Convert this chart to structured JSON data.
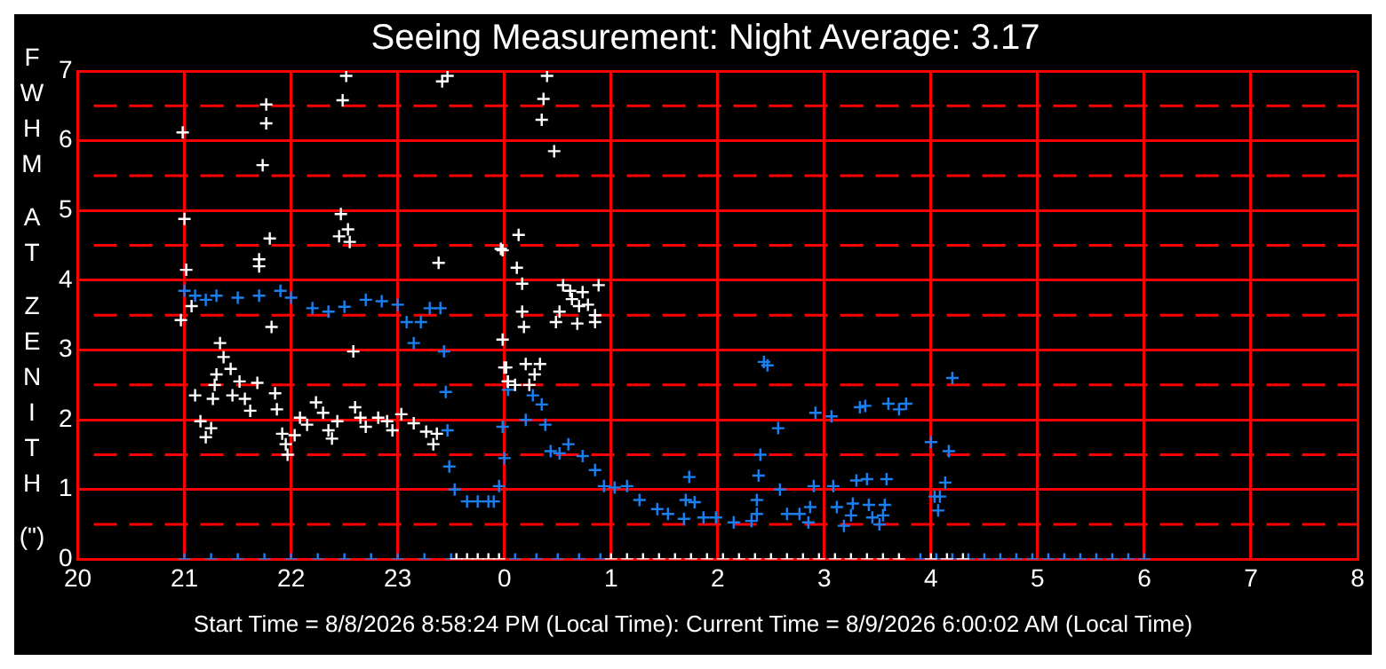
{
  "chart_data": {
    "type": "scatter",
    "title": "Seeing Measurement: Night Average: 3.17",
    "ylabel": "FWHM AT ZENITH (\")",
    "annotations": [
      "Start Time = 8/8/2026 8:58:24 PM (Local Time): Current Time = 8/9/2026 6:00:02 AM (Local Time)"
    ],
    "xlim": [
      "2026-08-08T20:00",
      "2026-08-09T08:00"
    ],
    "xticks": [
      {
        "value": "2026-08-08T20:00",
        "label": "20"
      },
      {
        "value": "2026-08-08T21:00",
        "label": "21"
      },
      {
        "value": "2026-08-08T22:00",
        "label": "22"
      },
      {
        "value": "2026-08-08T23:00",
        "label": "23"
      },
      {
        "value": "2026-08-09T00:00",
        "label": "0"
      },
      {
        "value": "2026-08-09T01:00",
        "label": "1"
      },
      {
        "value": "2026-08-09T02:00",
        "label": "2"
      },
      {
        "value": "2026-08-09T03:00",
        "label": "3"
      },
      {
        "value": "2026-08-09T04:00",
        "label": "4"
      },
      {
        "value": "2026-08-09T05:00",
        "label": "5"
      },
      {
        "value": "2026-08-09T06:00",
        "label": "6"
      },
      {
        "value": "2026-08-09T07:00",
        "label": "7"
      },
      {
        "value": "2026-08-09T08:00",
        "label": "8"
      }
    ],
    "ylim": [
      0,
      7
    ],
    "yticks": [
      0,
      {
        "value": 0.5,
        "label": null
      },
      1,
      {
        "value": 1.5,
        "label": null
      },
      2,
      {
        "value": 2.5,
        "label": null
      },
      3,
      {
        "value": 3.5,
        "label": null
      },
      4,
      {
        "value": 4.5,
        "label": null
      },
      5,
      {
        "value": 5.5,
        "label": null
      },
      6,
      {
        "value": 6.5,
        "label": null
      },
      7
    ],
    "grid": true,
    "legend": false,
    "marker": "cross",
    "series": [
      {
        "color": "#ffffff",
        "x": [
          "2026-08-08T20:59",
          "2026-08-08T21:00",
          "2026-08-08T21:01",
          "2026-08-08T20:58",
          "2026-08-08T21:04",
          "2026-08-08T21:46",
          "2026-08-08T21:46",
          "2026-08-08T21:44",
          "2026-08-08T21:48",
          "2026-08-08T21:42",
          "2026-08-08T21:42",
          "2026-08-08T21:49",
          "2026-08-08T21:20",
          "2026-08-08T21:22",
          "2026-08-08T21:18",
          "2026-08-08T21:26",
          "2026-08-08T21:17",
          "2026-08-08T21:31",
          "2026-08-08T21:06",
          "2026-08-08T21:16",
          "2026-08-08T21:27",
          "2026-08-08T21:41",
          "2026-08-08T21:34",
          "2026-08-08T21:37",
          "2026-08-08T21:51",
          "2026-08-08T21:52",
          "2026-08-08T21:09",
          "2026-08-08T21:15",
          "2026-08-08T21:12",
          "2026-08-08T21:55",
          "2026-08-08T21:57",
          "2026-08-08T21:58",
          "2026-08-08T22:02",
          "2026-08-08T22:05",
          "2026-08-08T22:09",
          "2026-08-08T22:14",
          "2026-08-08T22:18",
          "2026-08-08T22:21",
          "2026-08-08T22:23",
          "2026-08-08T22:26",
          "2026-08-08T22:36",
          "2026-08-08T22:39",
          "2026-08-08T22:42",
          "2026-08-08T22:49",
          "2026-08-08T22:54",
          "2026-08-08T22:57",
          "2026-08-08T23:02",
          "2026-08-08T23:09",
          "2026-08-08T23:16",
          "2026-08-08T23:20",
          "2026-08-08T23:22",
          "2026-08-08T22:35",
          "2026-08-08T22:28",
          "2026-08-08T22:32",
          "2026-08-08T22:27",
          "2026-08-08T22:33",
          "2026-08-08T22:29",
          "2026-08-08T22:31",
          "2026-08-08T23:23",
          "2026-08-08T23:28",
          "2026-08-08T23:25",
          "2026-08-08T23:59",
          "2026-08-08T23:59",
          "2026-08-09T00:00",
          "2026-08-09T00:02",
          "2026-08-09T00:24",
          "2026-08-09T00:22",
          "2026-08-09T00:21",
          "2026-08-09T00:28",
          "2026-08-09T00:08",
          "2026-08-08T23:58",
          "2026-08-09T00:07",
          "2026-08-09T00:10",
          "2026-08-09T00:10",
          "2026-08-09T00:11",
          "2026-08-09T00:33",
          "2026-08-09T00:37",
          "2026-08-09T00:44",
          "2026-08-09T00:53",
          "2026-08-09T00:38",
          "2026-08-09T00:42",
          "2026-08-09T00:47",
          "2026-08-09T00:31",
          "2026-08-09T00:41",
          "2026-08-09T00:51",
          "2026-08-09T00:51",
          "2026-08-09T00:29",
          "2026-08-09T00:01",
          "2026-08-09T00:12",
          "2026-08-09T00:20",
          "2026-08-09T00:17",
          "2026-08-09T00:14",
          "2026-08-09T00:02",
          "2026-08-09T00:06",
          "2026-08-08T23:33",
          "2026-08-08T23:39",
          "2026-08-08T23:45",
          "2026-08-08T23:51",
          "2026-08-08T23:57",
          "2026-08-09T01:00",
          "2026-08-09T01:09",
          "2026-08-09T01:18",
          "2026-08-09T01:27",
          "2026-08-09T01:36",
          "2026-08-09T01:45",
          "2026-08-09T01:54",
          "2026-08-09T02:03",
          "2026-08-09T02:12",
          "2026-08-09T02:21",
          "2026-08-09T02:30",
          "2026-08-09T02:39",
          "2026-08-09T02:48",
          "2026-08-09T02:57",
          "2026-08-09T03:06",
          "2026-08-09T03:15",
          "2026-08-09T03:24",
          "2026-08-09T03:33",
          "2026-08-09T03:42",
          "2026-08-09T04:00",
          "2026-08-09T04:09",
          "2026-08-09T04:18"
        ],
        "values": [
          6.12,
          4.88,
          4.15,
          3.43,
          3.63,
          6.52,
          6.25,
          5.65,
          4.6,
          4.3,
          4.2,
          3.33,
          3.1,
          2.9,
          2.65,
          2.73,
          2.5,
          2.55,
          2.35,
          2.3,
          2.35,
          2.53,
          2.3,
          2.13,
          2.38,
          2.15,
          1.98,
          1.88,
          1.75,
          1.8,
          1.65,
          1.5,
          1.78,
          2.03,
          1.93,
          2.25,
          2.1,
          1.85,
          1.73,
          1.98,
          2.18,
          2.03,
          1.9,
          2.03,
          1.98,
          1.85,
          2.08,
          1.95,
          1.83,
          1.65,
          1.8,
          2.98,
          4.95,
          4.73,
          4.63,
          4.55,
          6.58,
          6.93,
          4.25,
          6.93,
          6.85,
          4.43,
          3.15,
          2.75,
          2.55,
          6.93,
          6.6,
          6.3,
          5.85,
          4.65,
          4.45,
          4.18,
          3.95,
          3.55,
          3.33,
          3.93,
          3.85,
          3.83,
          3.93,
          3.73,
          3.63,
          3.65,
          3.55,
          3.38,
          3.5,
          3.4,
          3.4,
          2.75,
          2.8,
          2.8,
          2.65,
          2.5,
          2.55,
          2.5,
          0,
          0,
          0,
          0,
          0,
          0,
          0,
          0,
          0,
          0,
          0,
          0,
          0,
          0,
          0,
          0,
          0,
          0,
          0,
          0,
          0,
          0,
          0,
          0,
          0,
          0,
          0
        ]
      },
      {
        "color": "#1a80f0",
        "x": [
          "2026-08-08T21:00",
          "2026-08-08T21:06",
          "2026-08-08T21:12",
          "2026-08-08T21:18",
          "2026-08-08T21:30",
          "2026-08-08T21:42",
          "2026-08-08T21:54",
          "2026-08-08T22:00",
          "2026-08-08T22:12",
          "2026-08-08T22:21",
          "2026-08-08T22:30",
          "2026-08-08T22:42",
          "2026-08-08T22:51",
          "2026-08-08T23:00",
          "2026-08-08T23:05",
          "2026-08-08T23:09",
          "2026-08-08T23:13",
          "2026-08-08T23:18",
          "2026-08-08T23:24",
          "2026-08-08T23:26",
          "2026-08-08T23:27",
          "2026-08-08T23:28",
          "2026-08-08T23:29",
          "2026-08-08T23:32",
          "2026-08-08T23:39",
          "2026-08-08T23:45",
          "2026-08-08T23:51",
          "2026-08-08T23:54",
          "2026-08-08T23:57",
          "2026-08-09T00:00",
          "2026-08-08T23:59",
          "2026-08-09T00:02",
          "2026-08-09T00:12",
          "2026-08-09T00:16",
          "2026-08-09T00:21",
          "2026-08-09T00:23",
          "2026-08-09T00:26",
          "2026-08-09T00:31",
          "2026-08-09T00:36",
          "2026-08-09T00:44",
          "2026-08-09T00:51",
          "2026-08-09T00:56",
          "2026-08-09T01:02",
          "2026-08-09T01:09",
          "2026-08-09T01:16",
          "2026-08-09T01:26",
          "2026-08-09T01:32",
          "2026-08-09T01:41",
          "2026-08-09T01:52",
          "2026-08-09T01:59",
          "2026-08-09T02:09",
          "2026-08-09T02:19",
          "2026-08-09T01:44",
          "2026-08-09T01:42",
          "2026-08-09T01:47",
          "2026-08-09T02:26",
          "2026-08-09T02:28",
          "2026-08-09T02:34",
          "2026-08-09T02:24",
          "2026-08-09T02:23",
          "2026-08-09T02:35",
          "2026-08-09T02:22",
          "2026-08-09T02:22",
          "2026-08-09T02:39",
          "2026-08-09T02:46",
          "2026-08-09T02:52",
          "2026-08-09T02:51",
          "2026-08-09T02:54",
          "2026-08-09T02:55",
          "2026-08-09T03:04",
          "2026-08-09T03:05",
          "2026-08-09T03:07",
          "2026-08-09T03:11",
          "2026-08-09T03:15",
          "2026-08-09T03:16",
          "2026-08-09T03:18",
          "2026-08-09T03:20",
          "2026-08-09T03:23",
          "2026-08-09T03:24",
          "2026-08-09T03:25",
          "2026-08-09T03:27",
          "2026-08-09T03:31",
          "2026-08-09T03:33",
          "2026-08-09T03:34",
          "2026-08-09T03:35",
          "2026-08-09T03:36",
          "2026-08-09T03:42",
          "2026-08-09T03:46",
          "2026-08-09T04:00",
          "2026-08-09T04:02",
          "2026-08-09T04:05",
          "2026-08-09T04:04",
          "2026-08-09T04:08",
          "2026-08-09T04:10",
          "2026-08-09T04:12",
          "2026-08-08T21:00",
          "2026-08-08T21:15",
          "2026-08-08T21:30",
          "2026-08-08T21:45",
          "2026-08-08T22:00",
          "2026-08-08T22:15",
          "2026-08-08T22:30",
          "2026-08-08T22:45",
          "2026-08-08T23:00",
          "2026-08-08T23:15",
          "2026-08-08T23:30",
          "2026-08-09T00:06",
          "2026-08-09T00:18",
          "2026-08-09T00:30",
          "2026-08-09T00:42",
          "2026-08-09T00:54",
          "2026-08-09T03:54",
          "2026-08-09T04:03",
          "2026-08-09T04:12",
          "2026-08-09T04:21",
          "2026-08-09T04:30",
          "2026-08-09T04:39",
          "2026-08-09T04:48",
          "2026-08-09T04:57",
          "2026-08-09T05:06",
          "2026-08-09T05:15",
          "2026-08-09T05:24",
          "2026-08-09T05:33",
          "2026-08-09T05:42",
          "2026-08-09T05:51",
          "2026-08-09T06:00"
        ],
        "values": [
          3.85,
          3.78,
          3.72,
          3.78,
          3.75,
          3.78,
          3.85,
          3.75,
          3.6,
          3.55,
          3.62,
          3.72,
          3.7,
          3.65,
          3.4,
          3.1,
          3.4,
          3.6,
          3.6,
          2.98,
          2.4,
          1.85,
          1.33,
          1.0,
          0.83,
          0.83,
          0.83,
          0.83,
          1.05,
          1.45,
          1.9,
          2.43,
          2.0,
          2.35,
          2.22,
          1.93,
          1.55,
          1.52,
          1.65,
          1.48,
          1.28,
          1.05,
          1.03,
          1.05,
          0.85,
          0.72,
          0.65,
          0.58,
          0.6,
          0.6,
          0.53,
          0.55,
          1.18,
          0.85,
          0.82,
          2.83,
          2.78,
          1.88,
          1.5,
          1.2,
          1.0,
          0.85,
          0.65,
          0.65,
          0.65,
          0.75,
          0.53,
          1.05,
          2.1,
          2.05,
          1.05,
          0.75,
          0.48,
          0.63,
          0.8,
          1.13,
          2.18,
          2.2,
          1.15,
          0.78,
          0.6,
          0.5,
          0.63,
          0.78,
          1.15,
          2.23,
          2.15,
          2.23,
          1.68,
          0.9,
          0.9,
          0.7,
          1.1,
          1.55,
          2.6,
          0,
          0,
          0,
          0,
          0,
          0,
          0,
          0,
          0,
          0,
          0,
          0,
          0,
          0,
          0,
          0,
          0,
          0,
          0,
          0,
          0,
          0,
          0,
          0,
          0,
          0,
          0,
          0,
          0,
          0,
          0
        ]
      }
    ]
  }
}
